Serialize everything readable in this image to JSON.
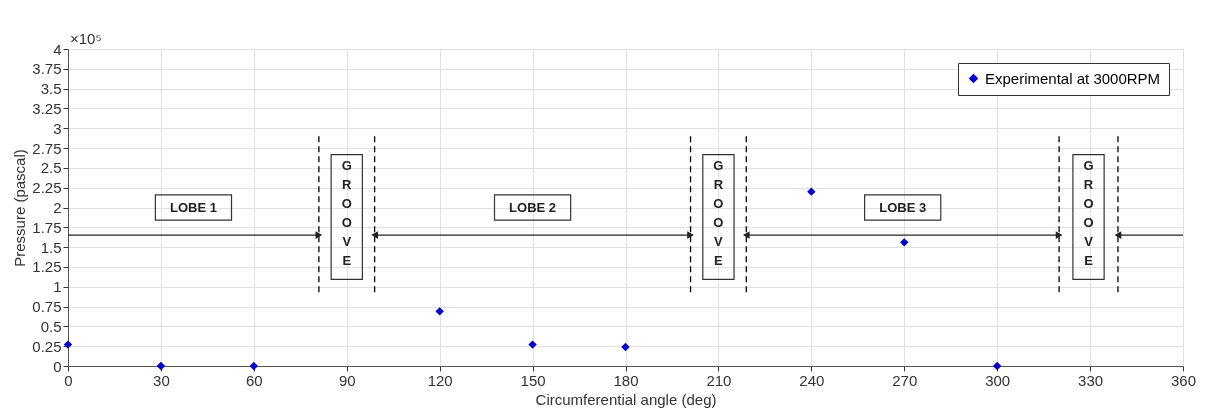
{
  "chart_data": {
    "type": "scatter",
    "xlabel": "Circumferential angle (deg)",
    "ylabel": "Pressure (pascal)",
    "annotations": [
      "×10⁵",
      "LOBE 1",
      "GROOVE",
      "LOBE 2",
      "GROOVE",
      "LOBE 3",
      "GROOVE"
    ],
    "x": [
      0,
      30,
      60,
      120,
      150,
      180,
      240,
      270,
      300
    ],
    "series": [
      {
        "name": "Experimental at 3000RPM",
        "color": "#0000cc",
        "values": [
          0.27,
          0,
          0,
          0.69,
          0.27,
          0.24,
          2.2,
          1.56,
          0
        ]
      }
    ],
    "marker": "diamond",
    "xlim": [
      0,
      360
    ],
    "xticks": [
      0,
      30,
      60,
      90,
      120,
      150,
      180,
      210,
      240,
      270,
      300,
      330,
      360
    ],
    "ylim": [
      0,
      4
    ],
    "yticks": [
      0,
      0.25,
      0.5,
      0.75,
      1,
      1.25,
      1.5,
      1.75,
      2,
      2.25,
      2.5,
      2.75,
      3,
      3.25,
      3.5,
      3.75,
      4
    ],
    "ref_lines": [
      {
        "axis": "x",
        "value": 81,
        "line_style": "dashed",
        "color": "#000000"
      },
      {
        "axis": "x",
        "value": 99,
        "line_style": "dashed",
        "color": "#000000"
      },
      {
        "axis": "x",
        "value": 201,
        "line_style": "dashed",
        "color": "#000000"
      },
      {
        "axis": "x",
        "value": 219,
        "line_style": "dashed",
        "color": "#000000"
      },
      {
        "axis": "x",
        "value": 320,
        "line_style": "dashed",
        "color": "#000000"
      },
      {
        "axis": "x",
        "value": 339,
        "line_style": "dashed",
        "color": "#000000"
      }
    ],
    "grid": true,
    "legend": "top right"
  }
}
